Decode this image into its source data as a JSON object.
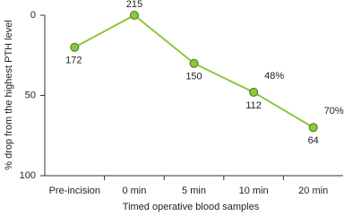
{
  "chart_data": {
    "type": "line",
    "x_label": "Timed operative blood samples",
    "y_label": "% drop from the highest PTH level",
    "categories": [
      "Pre-incision",
      "0 min",
      "5 min",
      "10 min",
      "20 min"
    ],
    "values": [
      20,
      0,
      30,
      48,
      70
    ],
    "value_labels": [
      null,
      null,
      null,
      "48%",
      "70%"
    ],
    "point_labels": [
      172,
      215,
      150,
      112,
      64
    ],
    "color": "#8dc63f",
    "ylim": [
      100,
      0
    ],
    "yticks": [
      0,
      50,
      100
    ]
  }
}
